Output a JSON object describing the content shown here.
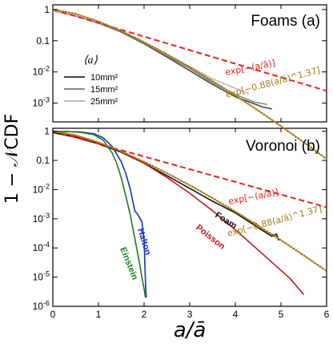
{
  "chart_data": [
    {
      "type": "line",
      "panel": "top",
      "title": "Foams (a)",
      "ylabel": "1 − 𝒩CDF",
      "xlim": [
        0,
        6
      ],
      "ylim_log10": [
        -3.6,
        0.15
      ],
      "y_tick_labels": [
        "1",
        "0.1",
        "10-2",
        "10-3"
      ],
      "legend": {
        "title": "⟨a⟩",
        "position": "center-left",
        "entries": [
          "10mm²",
          "15mm²",
          "25mm²"
        ]
      },
      "annotations": [
        "exp[−(a/ā)]",
        "exp[−0.88(a/ā)^1.37]"
      ],
      "series": [
        {
          "name": "10mm²",
          "color": "#444444",
          "x": [
            0,
            0.5,
            1,
            1.5,
            2,
            2.5,
            3,
            3.5,
            4,
            4.3,
            4.6,
            4.8
          ],
          "y": [
            0.9,
            0.62,
            0.37,
            0.19,
            0.08,
            0.03,
            0.011,
            0.004,
            0.0016,
            0.0011,
            0.00075,
            0.00065
          ]
        },
        {
          "name": "15mm²",
          "color": "#888888",
          "x": [
            0,
            0.5,
            1,
            1.5,
            2,
            2.5,
            3,
            3.5,
            4,
            4.4,
            4.7
          ],
          "y": [
            0.9,
            0.63,
            0.38,
            0.2,
            0.085,
            0.033,
            0.013,
            0.0045,
            0.0019,
            0.0011,
            0.0009
          ]
        },
        {
          "name": "25mm²",
          "color": "#bbbbbb",
          "x": [
            0,
            0.5,
            1,
            1.5,
            2,
            2.5,
            3,
            3.5,
            4,
            4.3
          ],
          "y": [
            0.9,
            0.64,
            0.39,
            0.21,
            0.09,
            0.036,
            0.015,
            0.006,
            0.003,
            0.002
          ]
        },
        {
          "name": "exp[−(a/ā)]",
          "color": "#e8201e",
          "style": "dashed",
          "x": [
            0,
            6
          ],
          "y": [
            1,
            0.00248
          ]
        },
        {
          "name": "exp[−0.88(a/ā)^1.37]",
          "color": "#a07a18",
          "style": "dotted",
          "x": [
            0,
            0.5,
            1,
            1.5,
            2,
            2.5,
            3,
            3.5,
            4,
            4.5,
            5,
            5.5,
            6
          ],
          "y": [
            1,
            0.729,
            0.415,
            0.204,
            0.0898,
            0.0367,
            0.0141,
            0.00513,
            0.00177,
            0.000583,
            0.000184,
            5.57e-05,
            1.62e-05
          ]
        }
      ]
    },
    {
      "type": "line",
      "panel": "bottom",
      "title": "Voronoi (b)",
      "xlabel": "a/ā",
      "xlim": [
        0,
        6
      ],
      "ylim_log10": [
        -6,
        0.1
      ],
      "x_ticks": [
        0,
        1,
        2,
        3,
        4,
        5,
        6
      ],
      "y_tick_labels": [
        "1",
        "0.1",
        "10-2",
        "10-3",
        "10-4",
        "10-5",
        "10-6"
      ],
      "annotations": [
        "exp[−(a/ā)]",
        "exp[−0.88(a/ā)^1.37]"
      ],
      "series": [
        {
          "name": "Foam",
          "color": "#111111",
          "x": [
            0,
            0.5,
            1,
            1.5,
            2,
            2.5,
            3,
            3.5,
            4,
            4.5,
            4.8,
            4.9,
            4.95
          ],
          "y": [
            0.9,
            0.62,
            0.37,
            0.19,
            0.08,
            0.03,
            0.011,
            0.004,
            0.0016,
            0.0005,
            0.00025,
            0.0003,
            0.00018
          ]
        },
        {
          "name": "Halton",
          "color": "#1c2ec0",
          "x": [
            0,
            0.3,
            0.6,
            0.9,
            1.1,
            1.3,
            1.5,
            1.6,
            1.7,
            1.75,
            1.8,
            1.85,
            1.9,
            1.95,
            2,
            2.02,
            2.04,
            2.05
          ],
          "y": [
            0.99,
            0.98,
            0.94,
            0.82,
            0.6,
            0.3,
            0.09,
            0.035,
            0.01,
            0.004,
            0.0018,
            0.0015,
            0.0011,
            0.0008,
            0.0002,
            2e-05,
            3e-06,
            2e-06
          ]
        },
        {
          "name": "Einstein",
          "color": "#207a20",
          "x": [
            0,
            0.3,
            0.6,
            0.9,
            1.1,
            1.3,
            1.4,
            1.5,
            1.6,
            1.7,
            1.8,
            1.9,
            1.95,
            2,
            2.03
          ],
          "y": [
            0.99,
            0.97,
            0.92,
            0.76,
            0.5,
            0.18,
            0.08,
            0.025,
            0.006,
            0.0013,
            0.0002,
            3e-05,
            1e-05,
            4e-06,
            2e-06
          ]
        },
        {
          "name": "Poisson",
          "color": "#c01818",
          "x": [
            0,
            0.5,
            1,
            1.5,
            2,
            2.5,
            3,
            3.5,
            4,
            4.5,
            5,
            5.2,
            5.5
          ],
          "y": [
            1,
            0.68,
            0.41,
            0.2,
            0.08,
            0.026,
            0.0075,
            0.0019,
            0.00042,
            8.5e-05,
            1.7e-05,
            9e-06,
            2.5e-06
          ]
        },
        {
          "name": "exp[−(a/ā)]",
          "color": "#e8201e",
          "style": "dashed",
          "x": [
            0,
            6
          ],
          "y": [
            1,
            0.00248
          ]
        },
        {
          "name": "exp[−0.88(a/ā)^1.37]",
          "color": "#a07a18",
          "style": "dotted",
          "x": [
            0,
            0.5,
            1,
            1.5,
            2,
            2.5,
            3,
            3.5,
            4,
            4.5,
            5,
            5.5,
            6
          ],
          "y": [
            1,
            0.729,
            0.415,
            0.204,
            0.0898,
            0.0367,
            0.0141,
            0.00513,
            0.00177,
            0.000583,
            0.000184,
            5.57e-05,
            1.62e-05
          ]
        }
      ]
    }
  ]
}
